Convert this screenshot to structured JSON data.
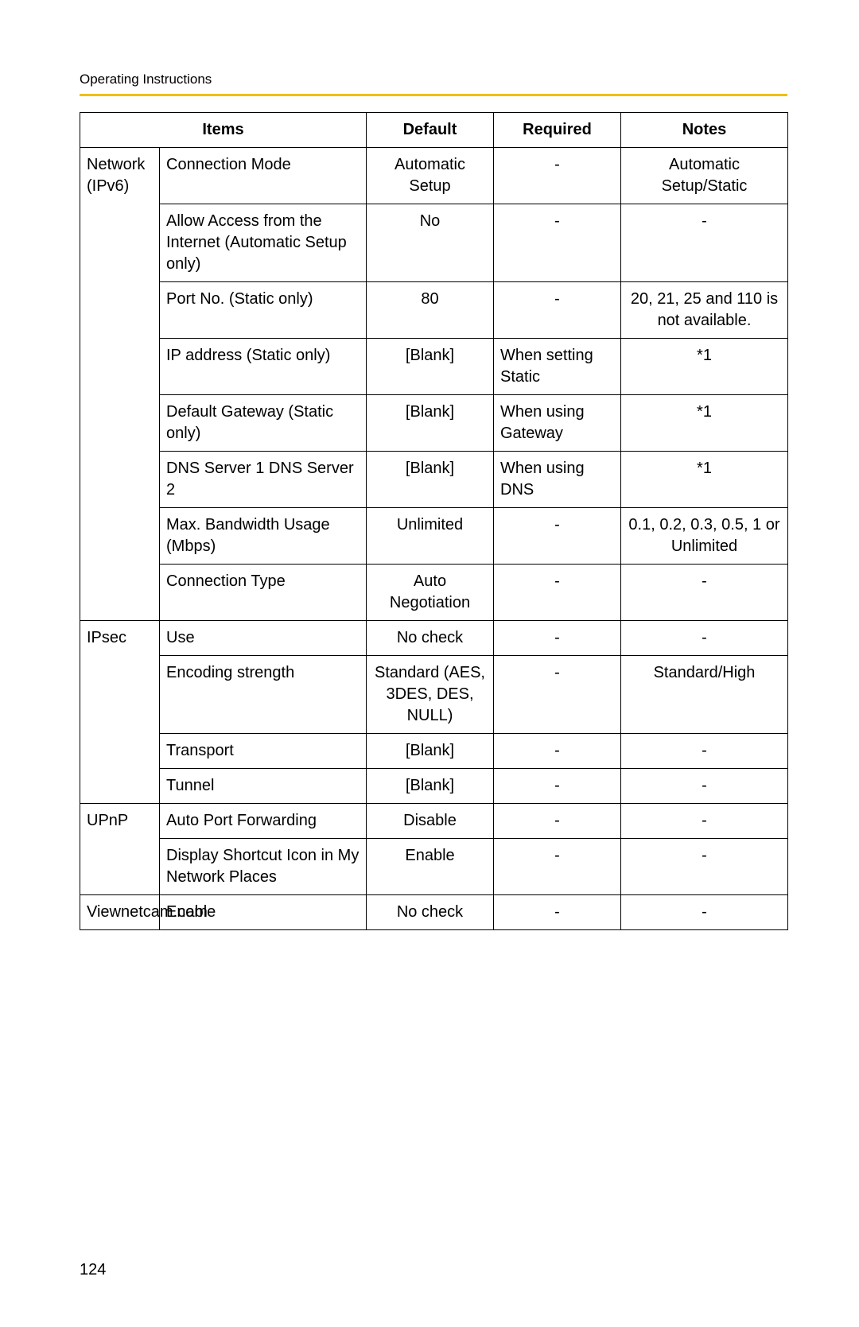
{
  "header": "Operating Instructions",
  "page_number": "124",
  "accent_color": "#f0c000",
  "table": {
    "columns": [
      "Items",
      "Default",
      "Required",
      "Notes"
    ],
    "groups": [
      {
        "category": "Network (IPv6)",
        "rows": [
          {
            "item": "Connection Mode",
            "default": "Automatic Setup",
            "required": "-",
            "notes": "Automatic Setup/Static"
          },
          {
            "item": "Allow Access from the Internet (Automatic Setup only)",
            "default": "No",
            "required": "-",
            "notes": "-"
          },
          {
            "item": "Port No. (Static only)",
            "default": "80",
            "required": "-",
            "notes": "20, 21, 25 and 110 is not available."
          },
          {
            "item": "IP address (Static only)",
            "default": "[Blank]",
            "required": "When setting Static",
            "notes": "*1"
          },
          {
            "item": "Default Gateway (Static only)",
            "default": "[Blank]",
            "required": "When using Gateway",
            "notes": "*1"
          },
          {
            "item": "DNS Server 1 DNS Server 2",
            "default": "[Blank]",
            "required": "When using DNS",
            "notes": "*1"
          },
          {
            "item": "Max. Bandwidth Usage (Mbps)",
            "default": "Unlimited",
            "required": "-",
            "notes": "0.1, 0.2, 0.3, 0.5, 1 or Unlimited"
          },
          {
            "item": "Connection Type",
            "default": "Auto Negotiation",
            "required": "-",
            "notes": "-"
          }
        ]
      },
      {
        "category": "IPsec",
        "rows": [
          {
            "item": "Use",
            "default": "No check",
            "required": "-",
            "notes": "-"
          },
          {
            "item": "Encoding strength",
            "default": "Standard (AES, 3DES, DES, NULL)",
            "required": "-",
            "notes": "Standard/High"
          },
          {
            "item": "Transport",
            "default": "[Blank]",
            "required": "-",
            "notes": "-"
          },
          {
            "item": "Tunnel",
            "default": "[Blank]",
            "required": "-",
            "notes": "-"
          }
        ]
      },
      {
        "category": "UPnP",
        "rows": [
          {
            "item": "Auto Port Forwarding",
            "default": "Disable",
            "required": "-",
            "notes": "-"
          },
          {
            "item": "Display Shortcut Icon in My Network Places",
            "default": "Enable",
            "required": "-",
            "notes": "-"
          }
        ]
      },
      {
        "category": "Viewnetcam.com",
        "rows": [
          {
            "item": "Enable",
            "default": "No check",
            "required": "-",
            "notes": "-"
          }
        ]
      }
    ]
  }
}
